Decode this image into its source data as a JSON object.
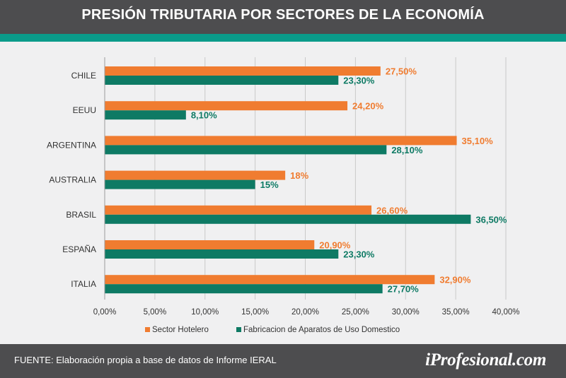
{
  "header": {
    "title": "PRESIÓN TRIBUTARIA POR SECTORES DE LA ECONOMÍA"
  },
  "footer": {
    "source": "FUENTE: Elaboración propia a base de datos de Informe IERAL",
    "logo": "iProfesional.com"
  },
  "colors": {
    "series1": "#f07c30",
    "series2": "#0e7a64",
    "header_bg": "#4d4d4f",
    "stripe": "#0b9b8a",
    "grid": "#c9c9c9"
  },
  "chart_data": {
    "type": "bar",
    "orientation": "horizontal",
    "categories": [
      "CHILE",
      "EEUU",
      "ARGENTINA",
      "AUSTRALIA",
      "BRASIL",
      "ESPAÑA",
      "ITALIA"
    ],
    "series": [
      {
        "name": "Sector Hotelero",
        "values": [
          27.5,
          24.2,
          35.1,
          18,
          26.6,
          20.9,
          32.9
        ],
        "labels": [
          "27,50%",
          "24,20%",
          "35,10%",
          "18%",
          "26,60%",
          "20,90%",
          "32,90%"
        ]
      },
      {
        "name": "Fabricacion de Aparatos de Uso Domestico",
        "values": [
          23.3,
          8.1,
          28.1,
          15,
          36.5,
          23.3,
          27.7
        ],
        "labels": [
          "23,30%",
          "8,10%",
          "28,10%",
          "15%",
          "36,50%",
          "23,30%",
          "27,70%"
        ]
      }
    ],
    "xlim": [
      0,
      40
    ],
    "xticks": [
      "0,00%",
      "5,00%",
      "10,00%",
      "15,00%",
      "20,00%",
      "25,00%",
      "30,00%",
      "35,00%",
      "40,00%"
    ],
    "grid": true,
    "legend": "bottom"
  }
}
